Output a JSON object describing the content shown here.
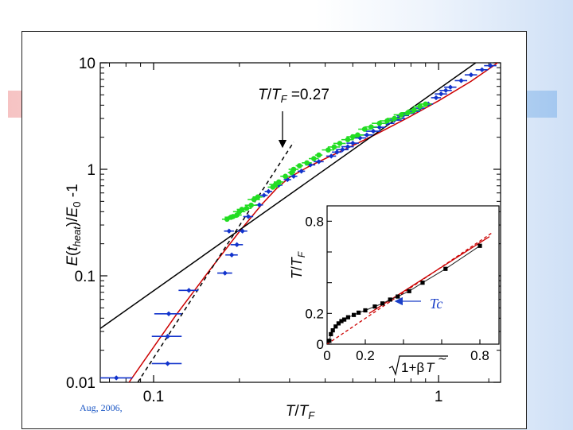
{
  "slide": {
    "footer_text": "Aug, 2006,"
  },
  "colors": {
    "red_curve": "#cc0000",
    "blue_data": "#1133cc",
    "green_data": "#22dd22",
    "black": "#000000",
    "inset_arrow": "#1a3fc8"
  },
  "chart_data": [
    {
      "type": "scatter",
      "scale": "log-log",
      "title": "",
      "xlabel": "T/T_F",
      "ylabel": "E(t_heat)/E_0 -1",
      "xlim": [
        0.065,
        1.65
      ],
      "ylim": [
        0.01,
        10
      ],
      "x_ticks": [
        {
          "value": 0.1,
          "label": "0.1"
        },
        {
          "value": 1,
          "label": "1"
        }
      ],
      "y_ticks": [
        {
          "value": 10,
          "label": "10"
        },
        {
          "value": 1,
          "label": "1"
        },
        {
          "value": 0.1,
          "label": "0.1"
        },
        {
          "value": 0.01,
          "label": "0.01"
        }
      ],
      "annotation": {
        "text": "T/T_F = 0.27",
        "target_x": 0.27
      },
      "series": [
        {
          "name": "blue data",
          "color": "#1133cc",
          "marker": "diamond",
          "x_err_frac": [
            0.14,
            0.11,
            0.12,
            0.12,
            0.08,
            0.06,
            0.05,
            0.05,
            0.04,
            0.04,
            0.04,
            0.03,
            0.03,
            0.03,
            0.03,
            0.03,
            0.03,
            0.03,
            0.04,
            0.04,
            0.04,
            0.04,
            0.05,
            0.05,
            0.05,
            0.05,
            0.05,
            0.06,
            0.05,
            0.06,
            0.06,
            0.06,
            0.05,
            0.05,
            0.05,
            0.04,
            0.04,
            0.04,
            0.05,
            0.05,
            0.05,
            0.05,
            0.05,
            0.05,
            0.05
          ],
          "points": [
            [
              0.074,
              0.011
            ],
            [
              0.113,
              0.044
            ],
            [
              0.112,
              0.027
            ],
            [
              0.112,
              0.015
            ],
            [
              0.133,
              0.073
            ],
            [
              0.178,
              0.106
            ],
            [
              0.188,
              0.157
            ],
            [
              0.196,
              0.196
            ],
            [
              0.184,
              0.263
            ],
            [
              0.205,
              0.263
            ],
            [
              0.215,
              0.36
            ],
            [
              0.235,
              0.463
            ],
            [
              0.244,
              0.57
            ],
            [
              0.253,
              0.62
            ],
            [
              0.275,
              0.71
            ],
            [
              0.295,
              0.8
            ],
            [
              0.31,
              0.86
            ],
            [
              0.33,
              0.96
            ],
            [
              0.355,
              1.1
            ],
            [
              0.38,
              1.18
            ],
            [
              0.42,
              1.33
            ],
            [
              0.44,
              1.45
            ],
            [
              0.46,
              1.53
            ],
            [
              0.48,
              1.63
            ],
            [
              0.5,
              1.76
            ],
            [
              0.53,
              1.97
            ],
            [
              0.56,
              2.1
            ],
            [
              0.59,
              2.28
            ],
            [
              0.62,
              2.48
            ],
            [
              0.66,
              2.7
            ],
            [
              0.7,
              2.9
            ],
            [
              0.72,
              3.0
            ],
            [
              0.75,
              3.2
            ],
            [
              0.78,
              3.35
            ],
            [
              0.82,
              3.5
            ],
            [
              0.86,
              3.75
            ],
            [
              0.92,
              4.1
            ],
            [
              0.98,
              4.7
            ],
            [
              1.02,
              5.1
            ],
            [
              1.06,
              5.5
            ],
            [
              1.1,
              5.9
            ],
            [
              1.2,
              6.8
            ],
            [
              1.3,
              7.7
            ],
            [
              1.42,
              8.6
            ],
            [
              1.52,
              9.4
            ]
          ]
        },
        {
          "name": "green data",
          "color": "#22dd22",
          "marker": "circle",
          "x_err_frac": [
            0.04,
            0.05,
            0.04,
            0.04,
            0.05,
            0.04,
            0.04,
            0.05,
            0.05,
            0.04,
            0.04,
            0.05,
            0.04,
            0.04,
            0.03,
            0.04,
            0.03,
            0.04,
            0.04,
            0.03,
            0.05,
            0.05,
            0.05,
            0.05,
            0.05,
            0.05,
            0.05,
            0.05,
            0.06,
            0.06,
            0.06,
            0.06,
            0.05,
            0.05,
            0.05,
            0.05
          ],
          "points": [
            [
              0.181,
              0.34
            ],
            [
              0.187,
              0.355
            ],
            [
              0.19,
              0.36
            ],
            [
              0.196,
              0.372
            ],
            [
              0.2,
              0.4
            ],
            [
              0.204,
              0.42
            ],
            [
              0.212,
              0.43
            ],
            [
              0.22,
              0.46
            ],
            [
              0.225,
              0.52
            ],
            [
              0.232,
              0.55
            ],
            [
              0.262,
              0.68
            ],
            [
              0.268,
              0.72
            ],
            [
              0.275,
              0.76
            ],
            [
              0.29,
              0.86
            ],
            [
              0.305,
              0.93
            ],
            [
              0.31,
              1.0
            ],
            [
              0.325,
              1.08
            ],
            [
              0.345,
              1.15
            ],
            [
              0.365,
              1.26
            ],
            [
              0.38,
              1.36
            ],
            [
              0.41,
              1.52
            ],
            [
              0.43,
              1.62
            ],
            [
              0.45,
              1.75
            ],
            [
              0.48,
              1.9
            ],
            [
              0.5,
              2.02
            ],
            [
              0.52,
              2.1
            ],
            [
              0.55,
              2.38
            ],
            [
              0.58,
              2.5
            ],
            [
              0.62,
              2.7
            ],
            [
              0.66,
              2.85
            ],
            [
              0.7,
              3.0
            ],
            [
              0.74,
              3.25
            ],
            [
              0.78,
              3.4
            ],
            [
              0.82,
              3.6
            ],
            [
              0.86,
              3.9
            ],
            [
              0.9,
              4.1
            ]
          ]
        },
        {
          "name": "red fit",
          "color": "#cc0000",
          "line": "solid",
          "points": [
            [
              0.082,
              0.01
            ],
            [
              0.12,
              0.043
            ],
            [
              0.16,
              0.12
            ],
            [
              0.2,
              0.26
            ],
            [
              0.24,
              0.47
            ],
            [
              0.27,
              0.66
            ],
            [
              0.3,
              0.84
            ],
            [
              0.35,
              1.06
            ],
            [
              0.4,
              1.26
            ],
            [
              0.5,
              1.67
            ],
            [
              0.6,
              2.12
            ],
            [
              0.7,
              2.62
            ],
            [
              0.8,
              3.16
            ],
            [
              1.0,
              4.4
            ],
            [
              1.3,
              6.7
            ],
            [
              1.55,
              9.3
            ],
            [
              1.65,
              10.5
            ]
          ]
        },
        {
          "name": "black line",
          "color": "#000000",
          "line": "solid",
          "points": [
            [
              0.065,
              0.032
            ],
            [
              1.35,
              10.0
            ]
          ]
        },
        {
          "name": "black dashed",
          "color": "#000000",
          "line": "dashed",
          "points": [
            [
              0.088,
              0.01
            ],
            [
              0.31,
              1.8
            ]
          ]
        }
      ]
    },
    {
      "type": "scatter",
      "title": "",
      "xlabel": "√(1+β) T̃",
      "ylabel": "T/T_F",
      "xlim": [
        0,
        0.9
      ],
      "ylim": [
        0,
        0.9
      ],
      "x_ticks": [
        {
          "value": 0,
          "label": "0"
        },
        {
          "value": 0.2,
          "label": "0.2"
        },
        {
          "value": 0.8,
          "label": "0.8"
        }
      ],
      "y_ticks": [
        {
          "value": 0,
          "label": "0"
        },
        {
          "value": 0.2,
          "label": "0.2"
        },
        {
          "value": 0.8,
          "label": "0.8"
        }
      ],
      "annotation": {
        "text": "Tc",
        "target_x": 0.36,
        "target_y": 0.26
      },
      "series": [
        {
          "name": "data",
          "color": "#000000",
          "marker": "square",
          "points": [
            [
              0.012,
              0.022
            ],
            [
              0.02,
              0.065
            ],
            [
              0.03,
              0.09
            ],
            [
              0.045,
              0.115
            ],
            [
              0.06,
              0.135
            ],
            [
              0.075,
              0.15
            ],
            [
              0.09,
              0.16
            ],
            [
              0.11,
              0.175
            ],
            [
              0.14,
              0.19
            ],
            [
              0.165,
              0.205
            ],
            [
              0.2,
              0.22
            ],
            [
              0.25,
              0.245
            ],
            [
              0.29,
              0.265
            ],
            [
              0.33,
              0.29
            ],
            [
              0.37,
              0.31
            ],
            [
              0.43,
              0.345
            ],
            [
              0.5,
              0.4
            ],
            [
              0.62,
              0.49
            ],
            [
              0.8,
              0.64
            ]
          ]
        },
        {
          "name": "fit",
          "color": "#cc0000",
          "line": "solid",
          "points": [
            [
              0.22,
              0.2
            ],
            [
              0.85,
              0.7
            ]
          ]
        },
        {
          "name": "ideal",
          "color": "#cc0000",
          "line": "dashed",
          "points": [
            [
              0.0,
              0.0
            ],
            [
              0.87,
              0.73
            ]
          ]
        }
      ]
    }
  ]
}
